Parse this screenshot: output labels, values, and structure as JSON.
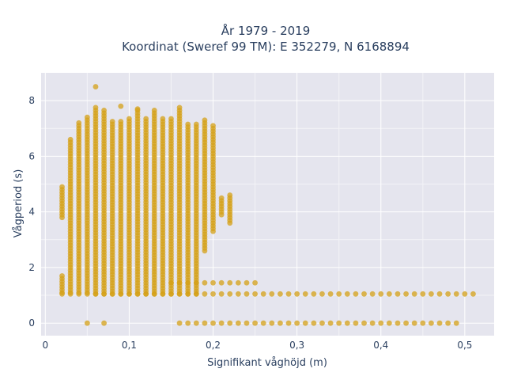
{
  "chart_data": {
    "type": "scatter",
    "title": [
      "År 1979 - 2019",
      "Koordinat (Sweref 99 TM): E 352279, N 6168894"
    ],
    "xlabel": "Signifikant våghöjd (m)",
    "ylabel": "Vågperiod (s)",
    "xlim": [
      -0.005,
      0.535
    ],
    "ylim": [
      -0.45,
      9.0
    ],
    "x_ticks": [
      0,
      0.1,
      0.2,
      0.3,
      0.4,
      0.5
    ],
    "x_tick_labels": [
      "0",
      "0,1",
      "0,2",
      "0,3",
      "0,4",
      "0,5"
    ],
    "y_ticks": [
      0,
      2,
      4,
      6,
      8
    ],
    "y_tick_labels": [
      "0",
      "2",
      "4",
      "6",
      "8"
    ],
    "grid": true,
    "marker_color": "#d4a017",
    "plot_background": "#e5e5ee",
    "columns": [
      {
        "x": 0.02,
        "ymin": 1.1,
        "ymax": 1.7,
        "ymin2": 3.8,
        "ymax2": 4.9
      },
      {
        "x": 0.03,
        "ymin": 1.1,
        "ymax": 6.6
      },
      {
        "x": 0.04,
        "ymin": 1.1,
        "ymax": 7.2
      },
      {
        "x": 0.05,
        "ymin": 1.1,
        "ymax": 7.4
      },
      {
        "x": 0.06,
        "ymin": 1.05,
        "ymax": 7.8
      },
      {
        "x": 0.07,
        "ymin": 1.05,
        "ymax": 7.7
      },
      {
        "x": 0.08,
        "ymin": 1.05,
        "ymax": 7.3
      },
      {
        "x": 0.09,
        "ymin": 1.05,
        "ymax": 7.3
      },
      {
        "x": 0.1,
        "ymin": 1.05,
        "ymax": 7.4
      },
      {
        "x": 0.11,
        "ymin": 1.05,
        "ymax": 7.7
      },
      {
        "x": 0.12,
        "ymin": 1.05,
        "ymax": 7.4
      },
      {
        "x": 0.13,
        "ymin": 1.05,
        "ymax": 7.7
      },
      {
        "x": 0.14,
        "ymin": 1.05,
        "ymax": 7.4
      },
      {
        "x": 0.15,
        "ymin": 1.05,
        "ymax": 7.4
      },
      {
        "x": 0.16,
        "ymin": 1.05,
        "ymax": 7.8
      },
      {
        "x": 0.17,
        "ymin": 1.05,
        "ymax": 7.2
      },
      {
        "x": 0.18,
        "ymin": 1.05,
        "ymax": 7.2
      },
      {
        "x": 0.19,
        "ymin": 2.6,
        "ymax": 7.3
      },
      {
        "x": 0.2,
        "ymin": 3.3,
        "ymax": 7.1
      },
      {
        "x": 0.21,
        "ymin": 3.9,
        "ymax": 4.5
      },
      {
        "x": 0.22,
        "ymin": 3.6,
        "ymax": 4.6
      }
    ],
    "bottom_rows": [
      {
        "y": 1.05,
        "xmin": 0.02,
        "xmax": 0.51
      },
      {
        "y": 1.45,
        "xmin": 0.15,
        "xmax": 0.25
      },
      {
        "y": 0.0,
        "xmin": 0.16,
        "xmax": 0.49
      }
    ],
    "outliers": [
      {
        "x": 0.06,
        "y": 8.5
      },
      {
        "x": 0.05,
        "y": 0.0
      },
      {
        "x": 0.07,
        "y": 0.0
      },
      {
        "x": 0.09,
        "y": 7.8
      },
      {
        "x": 0.11,
        "y": 7.7
      }
    ]
  }
}
